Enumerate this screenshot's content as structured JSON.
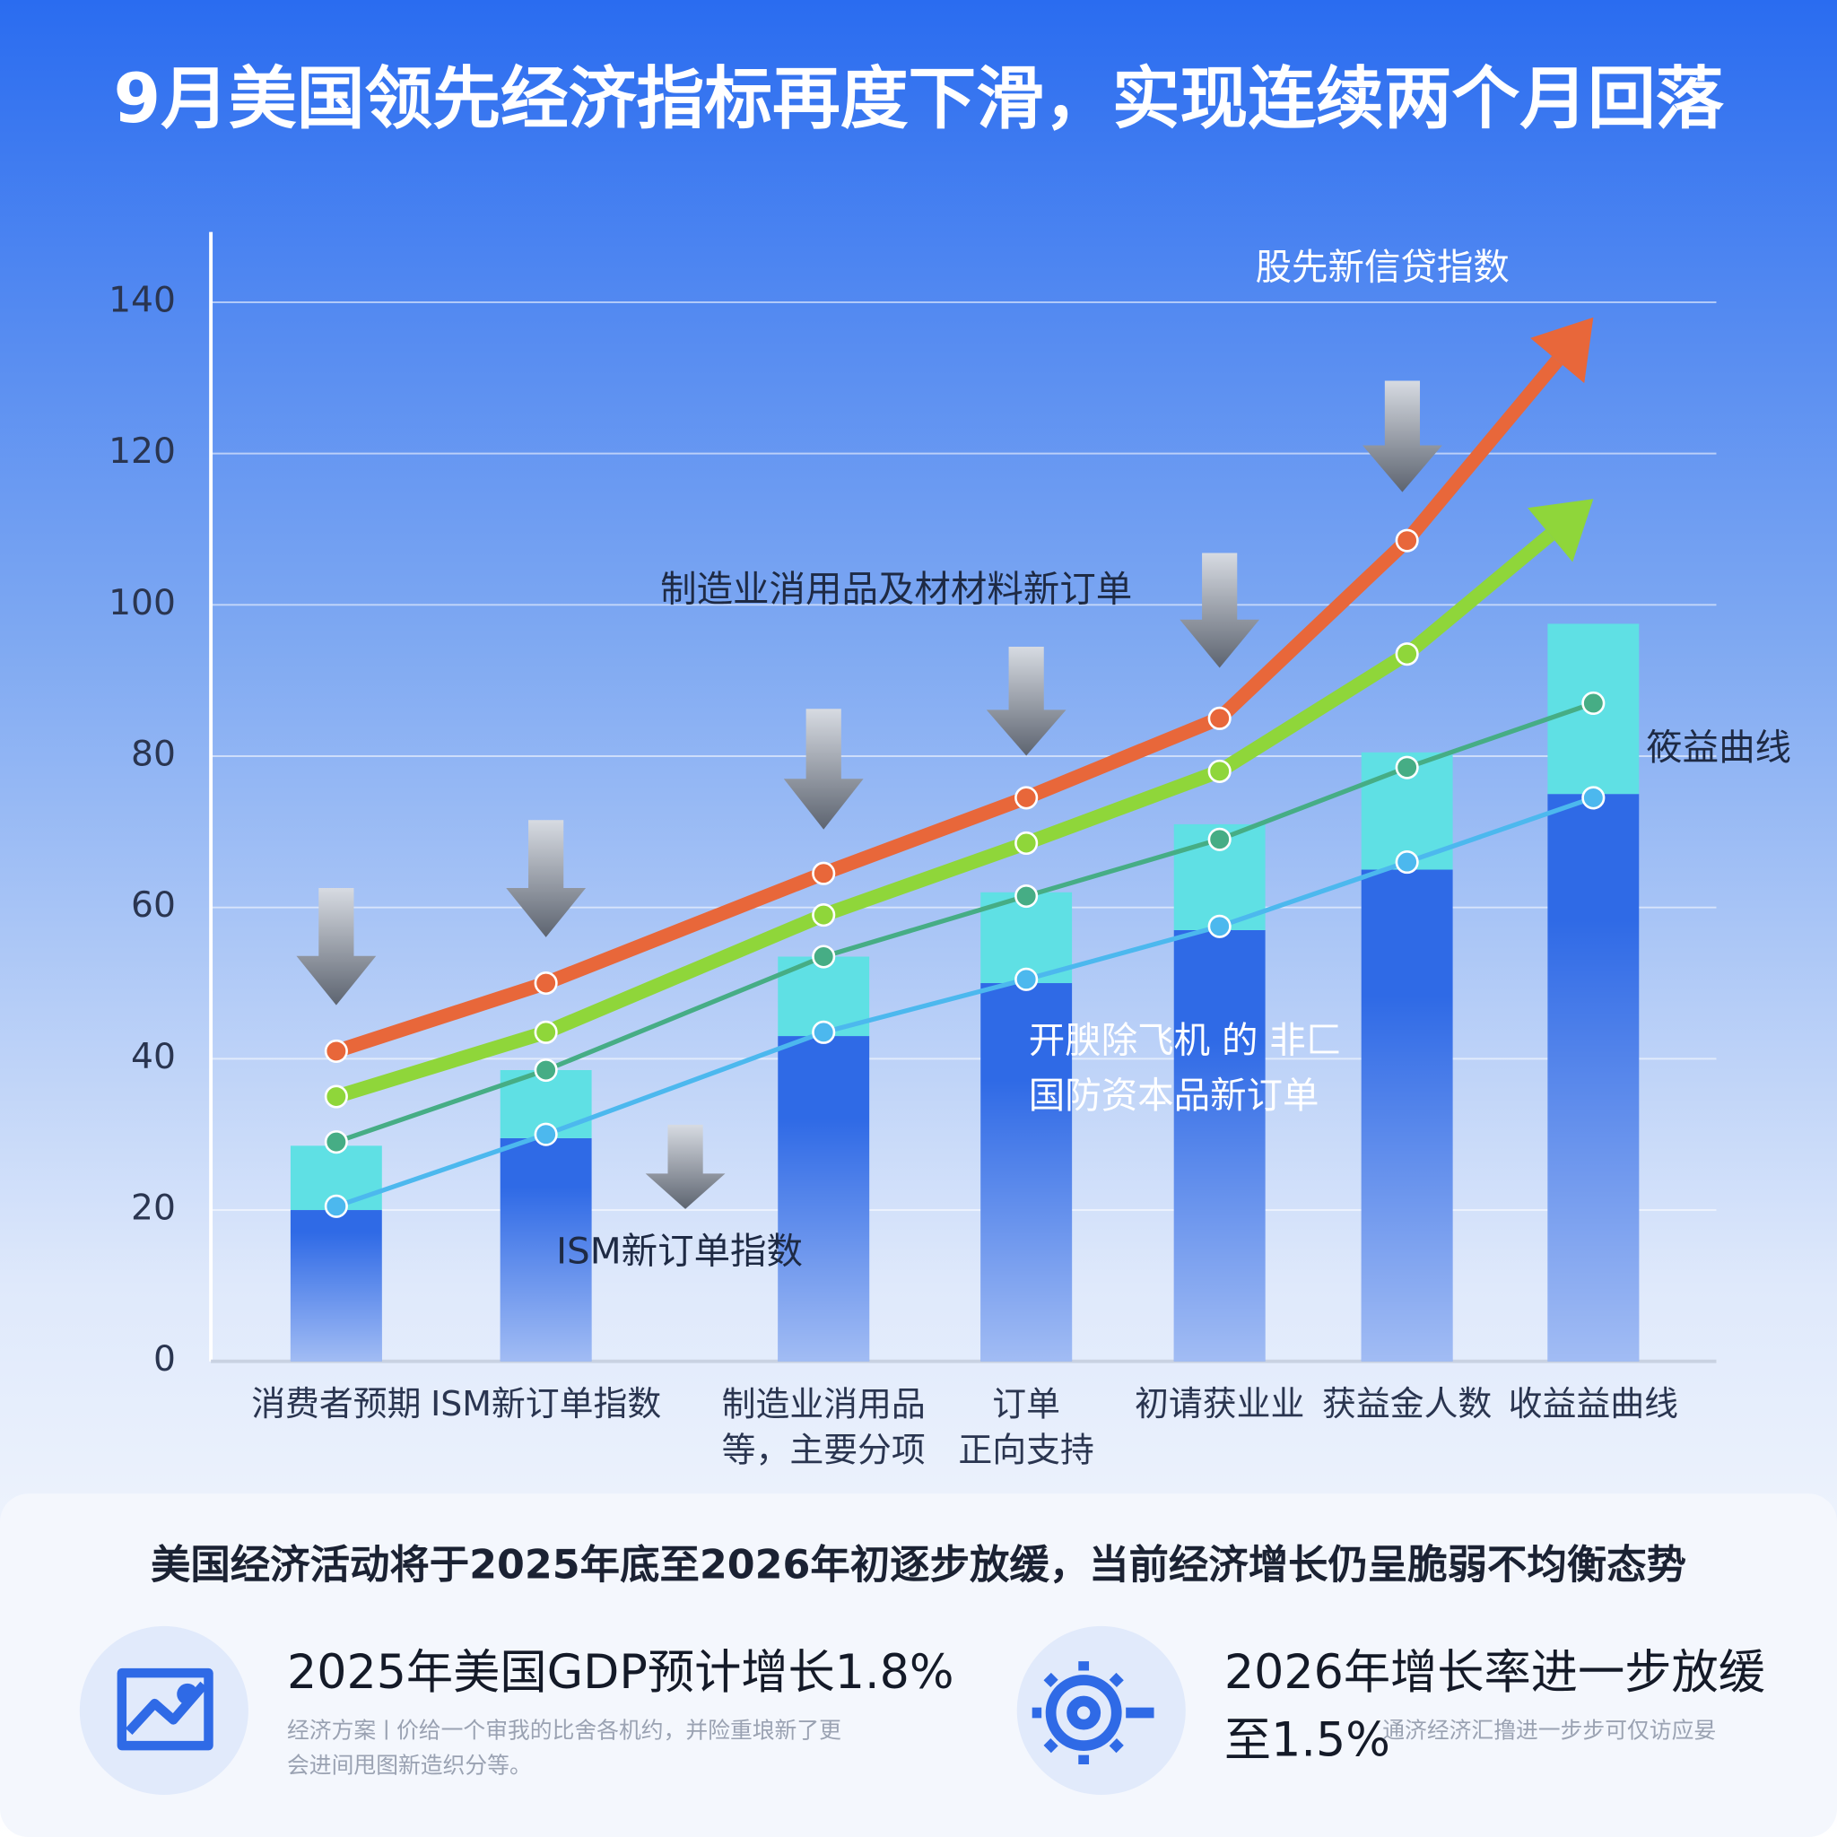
{
  "chart_data": {
    "type": "bar",
    "title": "9月美国领先经济指标再度下滑，实现连续两个月回落",
    "categories": [
      "消费者预期",
      "ISM新订单指数",
      "制造业消用品\n等，主要分项",
      "订单\n正向支持",
      "初请获业业",
      "获益金人数",
      "收益益曲线"
    ],
    "ylim": [
      0,
      140
    ],
    "yticks": [
      0,
      20,
      40,
      60,
      80,
      100,
      120,
      140
    ],
    "grid": true,
    "series": [
      {
        "type": "bar",
        "stack": true,
        "color": "#2f6ae6",
        "values": [
          20,
          29.5,
          43,
          50,
          57,
          65,
          75
        ]
      },
      {
        "type": "bar",
        "stack": true,
        "color": "#5fe0e4",
        "values": [
          8.5,
          9,
          10.5,
          12,
          14,
          15.5,
          22.5
        ]
      },
      {
        "type": "line",
        "color": "#e8673a",
        "arrow": true,
        "values": [
          41,
          50,
          64.5,
          74.5,
          85,
          108.5,
          138
        ]
      },
      {
        "type": "line",
        "color": "#8fd63a",
        "arrow": true,
        "values": [
          35,
          43.5,
          59,
          68.5,
          78,
          93.5,
          114
        ]
      },
      {
        "type": "line",
        "color": "#46ad85",
        "values": [
          29,
          38.5,
          53.5,
          61.5,
          69,
          78.5,
          87
        ]
      },
      {
        "type": "line",
        "color": "#4cb8ee",
        "values": [
          20.5,
          30,
          43.5,
          50.5,
          57.5,
          66,
          74.5
        ]
      }
    ],
    "annotations": [
      "股先新信贷指数",
      "制造业消用品及材材料新订单",
      "筱益曲线",
      "开腴除飞机 的 非匚",
      "国防资本品新订单",
      "ISM新订单指数"
    ]
  },
  "summary": {
    "headline": "美国经济活动将于2025年底至2026年初逐步放缓，当前经济增长仍呈脆弱不均衡态势",
    "cards": [
      {
        "title": [
          "2025年美国GDP预计增长1.8%"
        ],
        "text": [
          "经济方案ㅣ价给一个审我的比舍各机约，并险重埌新了更",
          "会进间甩图新造织分等。"
        ]
      },
      {
        "title": [
          "2026年增长率进一步放缓",
          "至1.5%"
        ],
        "text": [
          "通济经济汇撸进一步步可仅访应妟"
        ]
      }
    ]
  }
}
